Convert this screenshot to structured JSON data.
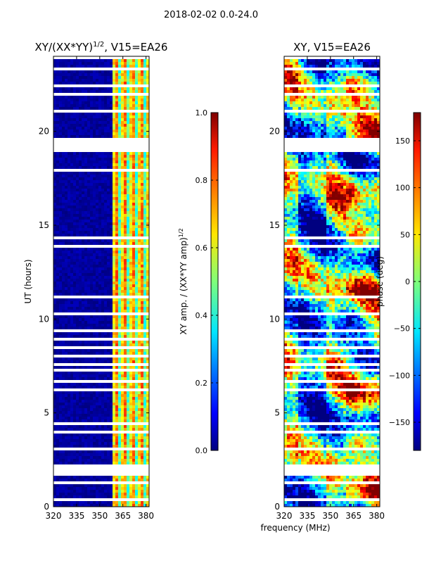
{
  "figure_title": "2018-02-02 0.0-24.0",
  "xlabel_shared": "frequency (MHz)",
  "chart_data": [
    {
      "type": "heatmap",
      "title_main": "XY/(XX*YY)",
      "title_sup": "1/2",
      "title_tail": ", V15=EA26",
      "ylabel": "UT (hours)",
      "xlim": [
        320,
        382
      ],
      "ylim": [
        0,
        24
      ],
      "xticks": [
        320,
        335,
        350,
        365,
        380
      ],
      "yticks": [
        0,
        5,
        10,
        15,
        20
      ],
      "colorbar": {
        "label_main": "XY amp. / (XX*YY amp)",
        "label_sup": "1/2",
        "range": [
          0.0,
          1.0
        ],
        "ticks": [
          "0.0",
          "0.2",
          "0.4",
          "0.6",
          "0.8",
          "1.0"
        ]
      }
    },
    {
      "type": "heatmap",
      "title_main": "XY, V15=EA26",
      "ylabel": "",
      "xlim": [
        320,
        382
      ],
      "ylim": [
        0,
        24
      ],
      "xticks": [
        320,
        335,
        350,
        365,
        380
      ],
      "yticks": [
        0,
        5,
        10,
        15,
        20
      ],
      "colorbar": {
        "label_main": "phase (deg)",
        "range": [
          -180,
          180
        ],
        "ticks": [
          "−150",
          "−100",
          "−50",
          "0",
          "50",
          "100",
          "150"
        ]
      }
    }
  ],
  "flagged_intervals_ut": [
    [
      0.25,
      0.45
    ],
    [
      1.85,
      2.05
    ],
    [
      7.25,
      7.35
    ],
    [
      18.85,
      19.6
    ],
    [
      22.4,
      22.55
    ],
    [
      23.8,
      24.0
    ]
  ]
}
